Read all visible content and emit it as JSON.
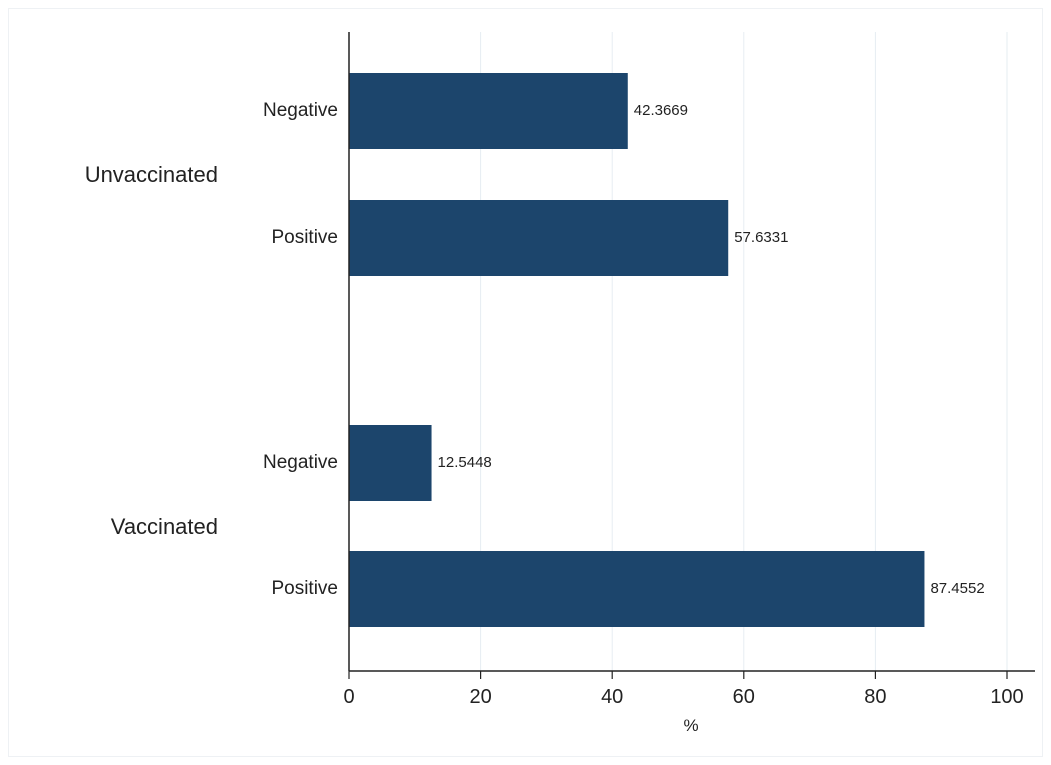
{
  "chart_data": {
    "type": "bar",
    "orientation": "horizontal",
    "groups": [
      {
        "label": "Unvaccinated",
        "bars": [
          {
            "label": "Negative",
            "value": 42.3669
          },
          {
            "label": "Positive",
            "value": 57.6331
          }
        ]
      },
      {
        "label": "Vaccinated",
        "bars": [
          {
            "label": "Negative",
            "value": 12.5448
          },
          {
            "label": "Positive",
            "value": 87.4552
          }
        ]
      }
    ],
    "xlabel": "%",
    "xlim": [
      0,
      100
    ],
    "xticks": [
      0,
      20,
      40,
      60,
      80,
      100
    ],
    "grid": "vertical",
    "bar_color": "#1c456c",
    "grid_color": "#e6edf2"
  }
}
